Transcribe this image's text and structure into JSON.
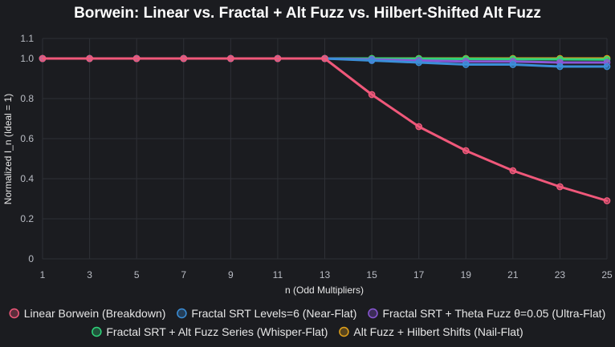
{
  "chart_data": {
    "type": "line",
    "title": "Borwein: Linear vs. Fractal + Alt Fuzz vs. Hilbert-Shifted Alt Fuzz",
    "xlabel": "n (Odd Multipliers)",
    "ylabel": "Normalized I_n (Ideal = 1)",
    "x": [
      1,
      3,
      5,
      7,
      9,
      11,
      13,
      15,
      17,
      19,
      21,
      23,
      25
    ],
    "x_tick_labels": [
      "1",
      "3",
      "5",
      "7",
      "9",
      "11",
      "13",
      "15",
      "17",
      "19",
      "21",
      "23",
      "25"
    ],
    "ylim": [
      0,
      1.1
    ],
    "y_ticks": [
      0,
      0.2,
      0.4,
      0.6,
      0.8,
      1.0,
      1.1
    ],
    "y_tick_labels": [
      "0",
      "0.2",
      "0.4",
      "0.6",
      "0.8",
      "1.0",
      "1.1"
    ],
    "grid": true,
    "legend_position": "bottom",
    "series": [
      {
        "name": "Linear Borwein (Breakdown)",
        "color": "#f0587a",
        "values": [
          1,
          1,
          1,
          1,
          1,
          1,
          1,
          0.82,
          0.66,
          0.54,
          0.44,
          0.36,
          0.29
        ]
      },
      {
        "name": "Fractal SRT Levels=6 (Near-Flat)",
        "color": "#3b8fd9",
        "values": [
          1,
          1,
          1,
          1,
          1,
          1,
          1,
          0.99,
          0.98,
          0.97,
          0.97,
          0.96,
          0.96
        ]
      },
      {
        "name": "Fractal SRT + Theta Fuzz θ=0.05 (Ultra-Flat)",
        "color": "#8a57d6",
        "values": [
          1,
          1,
          1,
          1,
          1,
          1,
          1,
          0.995,
          0.99,
          0.985,
          0.985,
          0.98,
          0.98
        ]
      },
      {
        "name": "Fractal SRT + Alt Fuzz Series (Whisper-Flat)",
        "color": "#2fd37a",
        "values": [
          1,
          1,
          1,
          1,
          1,
          1,
          1,
          1,
          0.999,
          0.998,
          0.997,
          0.996,
          0.995
        ]
      },
      {
        "name": "Alt Fuzz + Hilbert Shifts (Nail-Flat)",
        "color": "#e3a21a",
        "values": [
          1,
          1,
          1,
          1,
          1,
          1,
          1,
          1,
          1,
          1,
          1,
          1,
          1
        ]
      }
    ]
  }
}
